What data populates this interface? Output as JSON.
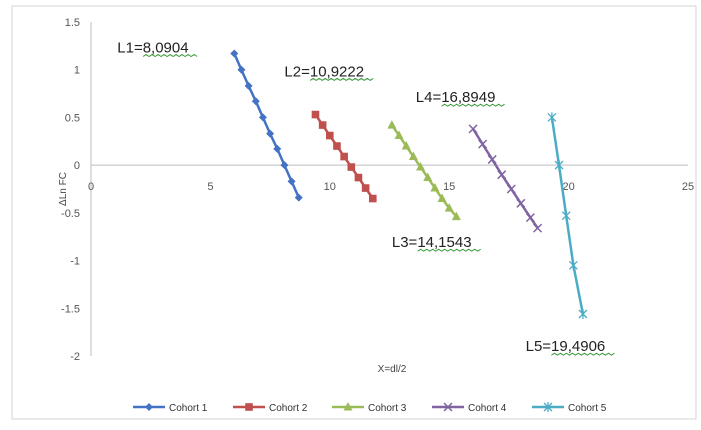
{
  "chart_data": {
    "type": "line",
    "title": "",
    "xlabel": "X=dl/2",
    "ylabel": "ΔLn FC",
    "xlim": [
      0,
      25
    ],
    "ylim": [
      -2,
      1.5
    ],
    "x_ticks": [
      "0",
      "5",
      "10",
      "15",
      "20",
      "25"
    ],
    "y_ticks": [
      "1.5",
      "1",
      "0.5",
      "0",
      "-0.5",
      "-1",
      "-1.5",
      "-2"
    ],
    "grid": false,
    "legend_position": "bottom",
    "series": [
      {
        "name": "Cohort 1",
        "color": "#4472C4",
        "marker": "diamond",
        "points": [
          [
            6.0,
            1.17
          ],
          [
            6.3,
            1.0
          ],
          [
            6.6,
            0.83
          ],
          [
            6.9,
            0.67
          ],
          [
            7.2,
            0.5
          ],
          [
            7.5,
            0.33
          ],
          [
            7.8,
            0.17
          ],
          [
            8.1,
            0.0
          ],
          [
            8.4,
            -0.17
          ],
          [
            8.7,
            -0.34
          ]
        ]
      },
      {
        "name": "Cohort 2",
        "color": "#C0504D",
        "marker": "square",
        "points": [
          [
            9.4,
            0.53
          ],
          [
            9.7,
            0.42
          ],
          [
            10.0,
            0.31
          ],
          [
            10.3,
            0.2
          ],
          [
            10.6,
            0.09
          ],
          [
            10.9,
            -0.02
          ],
          [
            11.2,
            -0.13
          ],
          [
            11.5,
            -0.24
          ],
          [
            11.8,
            -0.35
          ]
        ]
      },
      {
        "name": "Cohort 3",
        "color": "#9BBB59",
        "marker": "triangle",
        "points": [
          [
            12.6,
            0.42
          ],
          [
            12.9,
            0.31
          ],
          [
            13.2,
            0.2
          ],
          [
            13.5,
            0.09
          ],
          [
            13.8,
            -0.02
          ],
          [
            14.1,
            -0.13
          ],
          [
            14.4,
            -0.24
          ],
          [
            14.7,
            -0.35
          ],
          [
            15.0,
            -0.45
          ],
          [
            15.3,
            -0.54
          ]
        ]
      },
      {
        "name": "Cohort 4",
        "color": "#8064A2",
        "marker": "x",
        "points": [
          [
            16.0,
            0.38
          ],
          [
            16.4,
            0.22
          ],
          [
            16.8,
            0.06
          ],
          [
            17.2,
            -0.1
          ],
          [
            17.6,
            -0.25
          ],
          [
            18.0,
            -0.4
          ],
          [
            18.4,
            -0.55
          ],
          [
            18.7,
            -0.66
          ]
        ]
      },
      {
        "name": "Cohort 5",
        "color": "#4BACC6",
        "marker": "star",
        "points": [
          [
            19.3,
            0.5
          ],
          [
            19.6,
            0.0
          ],
          [
            19.9,
            -0.53
          ],
          [
            20.2,
            -1.05
          ],
          [
            20.6,
            -1.56
          ]
        ]
      }
    ],
    "annotations": [
      {
        "text": "L1=8,0904",
        "x": 1.1,
        "y": 1.18
      },
      {
        "text": "L2=10,9222",
        "x": 8.1,
        "y": 0.93
      },
      {
        "text": "L4=16,8949",
        "x": 13.6,
        "y": 0.66
      },
      {
        "text": "L3=14,1543",
        "x": 12.6,
        "y": -0.86
      },
      {
        "text": "L5=19,4906",
        "x": 18.2,
        "y": -1.95
      }
    ]
  }
}
